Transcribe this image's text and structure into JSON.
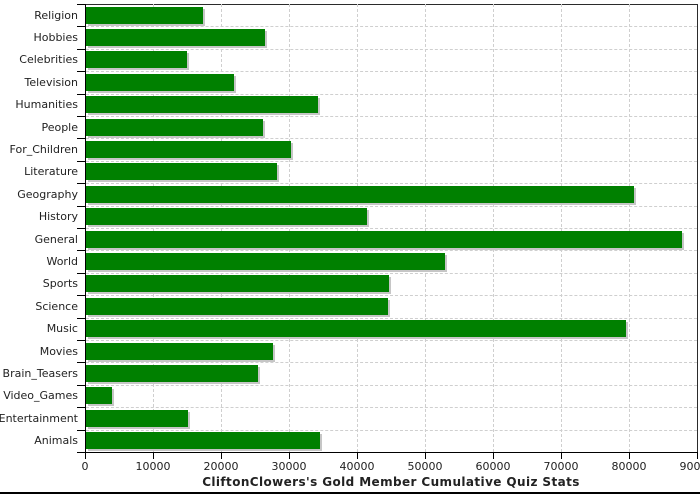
{
  "window": {
    "background": "#ffffff"
  },
  "chart_data": {
    "type": "bar",
    "orientation": "horizontal",
    "title": "CliftonClowers's Gold Member Cumulative Quiz Stats",
    "categories": [
      "Religion",
      "Hobbies",
      "Celebrities",
      "Television",
      "Humanities",
      "People",
      "For_Children",
      "Literature",
      "Geography",
      "History",
      "General",
      "World",
      "Sports",
      "Science",
      "Music",
      "Movies",
      "Brain_Teasers",
      "Video_Games",
      "Entertainment",
      "Animals"
    ],
    "values": [
      17400,
      26500,
      15000,
      21900,
      34200,
      26200,
      30300,
      28200,
      80800,
      41500,
      87800,
      53000,
      44700,
      44500,
      79500,
      27600,
      25500,
      3900,
      15200,
      34500
    ],
    "xlabel": "",
    "ylabel": "",
    "xlim": [
      0,
      90000
    ],
    "x_ticks": [
      0,
      10000,
      20000,
      30000,
      40000,
      50000,
      60000,
      70000,
      80000,
      90000
    ],
    "grid": "dashed",
    "legend": "none",
    "title_position": "bottom",
    "bar_color": "#008000",
    "bar_shadow_color": "#c6c6c6",
    "gridline_color": "#cfcfcf",
    "frame_color": "#2b2b2b",
    "axis_color": "#000000",
    "text_color": "#222222"
  }
}
